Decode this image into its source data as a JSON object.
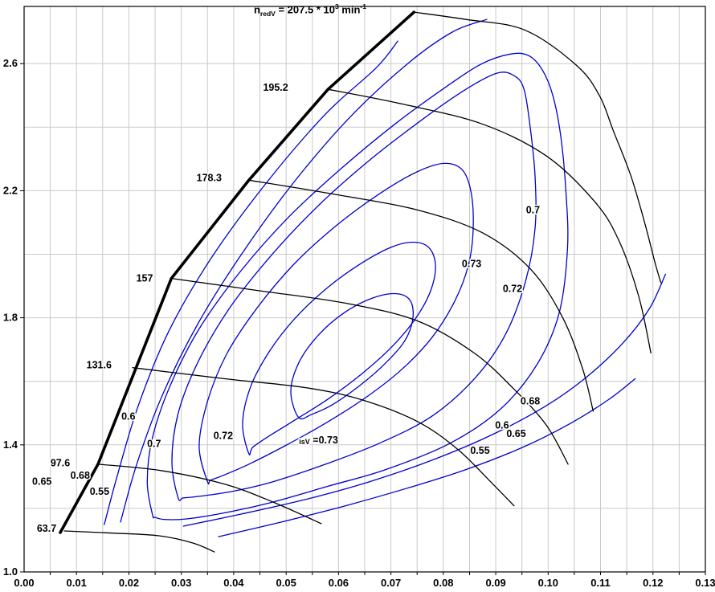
{
  "title": {
    "var": "n",
    "var_sub": "redV",
    "eq": " = 207.5 * 10",
    "exp": "3",
    "unit": " min",
    "unit_exp": "-1"
  },
  "chart_data": {
    "type": "line",
    "subtype": "compressor-map-contours",
    "title": "n_redV = 207.5 * 10^3 min^-1",
    "xlabel": "",
    "ylabel": "",
    "x_axis": {
      "min": 0.0,
      "max": 0.13,
      "label_step": 0.01,
      "grid_step": 0.005,
      "tick_labels": [
        "0.00",
        "0.01",
        "0.02",
        "0.03",
        "0.04",
        "0.05",
        "0.06",
        "0.07",
        "0.08",
        "0.09",
        "0.10",
        "0.11",
        "0.12",
        "0.13"
      ],
      "tick_values": [
        0,
        0.01,
        0.02,
        0.03,
        0.04,
        0.05,
        0.06,
        0.07,
        0.08,
        0.09,
        0.1,
        0.11,
        0.12,
        0.13
      ]
    },
    "y_axis": {
      "min": 1.0,
      "max": 2.78,
      "grid_step": 0.2,
      "tick_labels": [
        "1.0",
        "1.4",
        "1.8",
        "2.2",
        "2.6"
      ],
      "tick_values": [
        1.0,
        1.4,
        1.8,
        2.2,
        2.6
      ],
      "grid_values": [
        1.2,
        1.4,
        1.6,
        1.8,
        2.0,
        2.2,
        2.4,
        2.6
      ]
    },
    "colors": {
      "speed_line": "#000000",
      "surge_line": "#000000",
      "contour": "#0000cd",
      "grid": "#c9c9c9",
      "axis": "#000000",
      "label": "#000000",
      "background": "#ffffff"
    },
    "surge_line": {
      "points": [
        [
          0.0069,
          1.124
        ],
        [
          0.0141,
          1.339
        ],
        [
          0.0281,
          1.924
        ],
        [
          0.0429,
          2.233
        ],
        [
          0.058,
          2.519
        ],
        [
          0.0744,
          2.762
        ]
      ]
    },
    "speed_lines": [
      {
        "label": "207.5",
        "show_label": false,
        "points": [
          [
            0.0744,
            2.762
          ],
          [
            0.0843,
            2.739
          ],
          [
            0.0955,
            2.706
          ],
          [
            0.1054,
            2.595
          ],
          [
            0.1098,
            2.499
          ],
          [
            0.1124,
            2.39
          ],
          [
            0.1158,
            2.246
          ],
          [
            0.1185,
            2.094
          ],
          [
            0.1205,
            1.967
          ],
          [
            0.1215,
            1.911
          ]
        ]
      },
      {
        "label": "195.2",
        "show_label": true,
        "label_x": 0.048,
        "label_y": 2.524,
        "points": [
          [
            0.058,
            2.519
          ],
          [
            0.0721,
            2.473
          ],
          [
            0.0874,
            2.41
          ],
          [
            0.0997,
            2.309
          ],
          [
            0.1089,
            2.165
          ],
          [
            0.1135,
            2.043
          ],
          [
            0.1173,
            1.866
          ],
          [
            0.1196,
            1.689
          ]
        ]
      },
      {
        "label": "178.3",
        "show_label": true,
        "label_x": 0.0353,
        "label_y": 2.24,
        "points": [
          [
            0.0429,
            2.233
          ],
          [
            0.0598,
            2.187
          ],
          [
            0.0751,
            2.139
          ],
          [
            0.0874,
            2.068
          ],
          [
            0.0966,
            1.954
          ],
          [
            0.1027,
            1.803
          ],
          [
            0.1066,
            1.638
          ],
          [
            0.1086,
            1.506
          ]
        ]
      },
      {
        "label": "157",
        "show_label": true,
        "label_x": 0.023,
        "label_y": 1.924,
        "points": [
          [
            0.0281,
            1.924
          ],
          [
            0.0445,
            1.886
          ],
          [
            0.0613,
            1.846
          ],
          [
            0.0751,
            1.79
          ],
          [
            0.0859,
            1.689
          ],
          [
            0.0935,
            1.575
          ],
          [
            0.0997,
            1.461
          ],
          [
            0.1038,
            1.339
          ]
        ]
      },
      {
        "label": "131.6",
        "show_label": true,
        "label_x": 0.0143,
        "label_y": 1.651,
        "points": [
          [
            0.0207,
            1.643
          ],
          [
            0.0383,
            1.608
          ],
          [
            0.0537,
            1.58
          ],
          [
            0.0644,
            1.542
          ],
          [
            0.0751,
            1.473
          ],
          [
            0.0828,
            1.385
          ],
          [
            0.089,
            1.284
          ],
          [
            0.0935,
            1.208
          ]
        ]
      },
      {
        "label": "97.6",
        "show_label": true,
        "label_x": 0.0069,
        "label_y": 1.342,
        "points": [
          [
            0.0141,
            1.339
          ],
          [
            0.0261,
            1.319
          ],
          [
            0.0383,
            1.276
          ],
          [
            0.0475,
            1.22
          ],
          [
            0.0567,
            1.152
          ]
        ]
      },
      {
        "label": "63.7",
        "show_label": true,
        "label_x": 0.0043,
        "label_y": 1.137,
        "points": [
          [
            0.0077,
            1.129
          ],
          [
            0.0169,
            1.122
          ],
          [
            0.0256,
            1.114
          ],
          [
            0.0322,
            1.091
          ],
          [
            0.0363,
            1.063
          ]
        ]
      }
    ],
    "efficiency_contours": [
      {
        "id": "c1",
        "closed": false,
        "points": [
          [
            0.0153,
            1.149
          ],
          [
            0.0178,
            1.304
          ],
          [
            0.0218,
            1.524
          ],
          [
            0.0276,
            1.757
          ],
          [
            0.0356,
            1.985
          ],
          [
            0.046,
            2.22
          ],
          [
            0.0575,
            2.441
          ],
          [
            0.0672,
            2.587
          ],
          [
            0.0713,
            2.671
          ]
        ]
      },
      {
        "id": "c2",
        "closed": false,
        "points": [
          [
            0.0184,
            1.157
          ],
          [
            0.0215,
            1.339
          ],
          [
            0.0264,
            1.557
          ],
          [
            0.0333,
            1.785
          ],
          [
            0.0417,
            2.005
          ],
          [
            0.0514,
            2.225
          ],
          [
            0.0621,
            2.43
          ],
          [
            0.0732,
            2.6
          ],
          [
            0.0817,
            2.699
          ],
          [
            0.0883,
            2.739
          ]
        ]
      },
      {
        "id": "c3",
        "closed": true,
        "points": [
          [
            0.0245,
            1.18
          ],
          [
            0.0235,
            1.284
          ],
          [
            0.0245,
            1.423
          ],
          [
            0.0279,
            1.587
          ],
          [
            0.0334,
            1.765
          ],
          [
            0.0411,
            1.942
          ],
          [
            0.0503,
            2.114
          ],
          [
            0.0606,
            2.271
          ],
          [
            0.0708,
            2.41
          ],
          [
            0.0807,
            2.529
          ],
          [
            0.0874,
            2.6
          ],
          [
            0.0928,
            2.63
          ],
          [
            0.0963,
            2.625
          ],
          [
            0.0989,
            2.58
          ],
          [
            0.1009,
            2.499
          ],
          [
            0.1024,
            2.372
          ],
          [
            0.1034,
            2.195
          ],
          [
            0.1037,
            2.018
          ],
          [
            0.1021,
            1.815
          ],
          [
            0.0978,
            1.651
          ],
          [
            0.0908,
            1.511
          ],
          [
            0.0813,
            1.405
          ],
          [
            0.069,
            1.322
          ],
          [
            0.0583,
            1.271
          ],
          [
            0.0475,
            1.22
          ],
          [
            0.0386,
            1.187
          ],
          [
            0.031,
            1.167
          ],
          [
            0.0268,
            1.165
          ],
          [
            0.025,
            1.172
          ]
        ]
      },
      {
        "id": "c4",
        "closed": true,
        "points": [
          [
            0.0294,
            1.233
          ],
          [
            0.0282,
            1.347
          ],
          [
            0.0294,
            1.499
          ],
          [
            0.0331,
            1.658
          ],
          [
            0.0391,
            1.828
          ],
          [
            0.0472,
            1.997
          ],
          [
            0.0564,
            2.157
          ],
          [
            0.0663,
            2.301
          ],
          [
            0.0759,
            2.423
          ],
          [
            0.084,
            2.516
          ],
          [
            0.0902,
            2.57
          ],
          [
            0.0935,
            2.562
          ],
          [
            0.0954,
            2.519
          ],
          [
            0.0966,
            2.397
          ],
          [
            0.0975,
            2.246
          ],
          [
            0.0975,
            2.081
          ],
          [
            0.0957,
            1.916
          ],
          [
            0.092,
            1.752
          ],
          [
            0.0862,
            1.613
          ],
          [
            0.0779,
            1.491
          ],
          [
            0.0678,
            1.405
          ],
          [
            0.0575,
            1.339
          ],
          [
            0.0475,
            1.284
          ],
          [
            0.0396,
            1.253
          ],
          [
            0.0334,
            1.238
          ],
          [
            0.0304,
            1.233
          ]
        ]
      },
      {
        "id": "c5",
        "closed": true,
        "points": [
          [
            0.035,
            1.284
          ],
          [
            0.0334,
            1.395
          ],
          [
            0.035,
            1.537
          ],
          [
            0.0386,
            1.684
          ],
          [
            0.0442,
            1.825
          ],
          [
            0.0514,
            1.967
          ],
          [
            0.0595,
            2.089
          ],
          [
            0.0678,
            2.19
          ],
          [
            0.0748,
            2.258
          ],
          [
            0.0801,
            2.286
          ],
          [
            0.0836,
            2.266
          ],
          [
            0.0853,
            2.195
          ],
          [
            0.0857,
            2.081
          ],
          [
            0.0848,
            1.967
          ],
          [
            0.0822,
            1.853
          ],
          [
            0.0779,
            1.739
          ],
          [
            0.0721,
            1.638
          ],
          [
            0.0652,
            1.549
          ],
          [
            0.0575,
            1.468
          ],
          [
            0.0498,
            1.397
          ],
          [
            0.0429,
            1.339
          ],
          [
            0.038,
            1.304
          ],
          [
            0.0356,
            1.289
          ]
        ]
      },
      {
        "id": "c6",
        "closed": true,
        "points": [
          [
            0.0429,
            1.372
          ],
          [
            0.0417,
            1.466
          ],
          [
            0.0432,
            1.582
          ],
          [
            0.0468,
            1.694
          ],
          [
            0.0518,
            1.8
          ],
          [
            0.058,
            1.896
          ],
          [
            0.0644,
            1.972
          ],
          [
            0.0702,
            2.023
          ],
          [
            0.0745,
            2.038
          ],
          [
            0.0774,
            2.018
          ],
          [
            0.0785,
            1.962
          ],
          [
            0.0776,
            1.886
          ],
          [
            0.0748,
            1.8
          ],
          [
            0.0702,
            1.709
          ],
          [
            0.0644,
            1.623
          ],
          [
            0.058,
            1.544
          ],
          [
            0.0515,
            1.476
          ],
          [
            0.0463,
            1.423
          ],
          [
            0.0436,
            1.392
          ]
        ]
      },
      {
        "id": "c7",
        "closed": true,
        "points": [
          [
            0.0524,
            1.486
          ],
          [
            0.0509,
            1.567
          ],
          [
            0.0524,
            1.658
          ],
          [
            0.0561,
            1.744
          ],
          [
            0.061,
            1.815
          ],
          [
            0.0663,
            1.861
          ],
          [
            0.0708,
            1.876
          ],
          [
            0.0736,
            1.856
          ],
          [
            0.0742,
            1.8
          ],
          [
            0.0727,
            1.729
          ],
          [
            0.069,
            1.658
          ],
          [
            0.0641,
            1.587
          ],
          [
            0.0589,
            1.527
          ],
          [
            0.0549,
            1.496
          ]
        ]
      },
      {
        "id": "c8",
        "closed": false,
        "points": [
          [
            0.0304,
            1.144
          ],
          [
            0.0414,
            1.182
          ],
          [
            0.0537,
            1.228
          ],
          [
            0.0659,
            1.284
          ],
          [
            0.0782,
            1.354
          ],
          [
            0.0897,
            1.435
          ],
          [
            0.0997,
            1.524
          ],
          [
            0.1073,
            1.613
          ],
          [
            0.1142,
            1.719
          ],
          [
            0.1193,
            1.828
          ],
          [
            0.1224,
            1.937
          ]
        ]
      },
      {
        "id": "c9",
        "closed": false,
        "points": [
          [
            0.0371,
            1.111
          ],
          [
            0.0491,
            1.157
          ],
          [
            0.0613,
            1.208
          ],
          [
            0.0736,
            1.266
          ],
          [
            0.0843,
            1.322
          ],
          [
            0.0951,
            1.392
          ],
          [
            0.1043,
            1.468
          ],
          [
            0.1115,
            1.542
          ],
          [
            0.1166,
            1.608
          ]
        ]
      }
    ],
    "contour_labels": [
      {
        "text": "0.6",
        "x": 0.0199,
        "y": 1.489
      },
      {
        "text": "0.7",
        "x": 0.0248,
        "y": 1.403
      },
      {
        "text": "0.72",
        "x": 0.038,
        "y": 1.428
      },
      {
        "text": "=0.73",
        "prefix": "isV",
        "x": 0.0562,
        "y": 1.415
      },
      {
        "text": "0.73",
        "x": 0.0854,
        "y": 1.97
      },
      {
        "text": "0.72",
        "x": 0.0932,
        "y": 1.891
      },
      {
        "text": "0.7",
        "x": 0.0971,
        "y": 2.139
      },
      {
        "text": "0.68",
        "x": 0.0966,
        "y": 1.537
      },
      {
        "text": "0.6",
        "x": 0.0912,
        "y": 1.461
      },
      {
        "text": "0.65",
        "x": 0.0939,
        "y": 1.435
      },
      {
        "text": "0.55",
        "x": 0.087,
        "y": 1.382
      },
      {
        "text": "0.68",
        "x": 0.0107,
        "y": 1.304
      },
      {
        "text": "0.65",
        "x": 0.0034,
        "y": 1.284
      },
      {
        "text": "0.55",
        "x": 0.0144,
        "y": 1.253
      }
    ]
  }
}
